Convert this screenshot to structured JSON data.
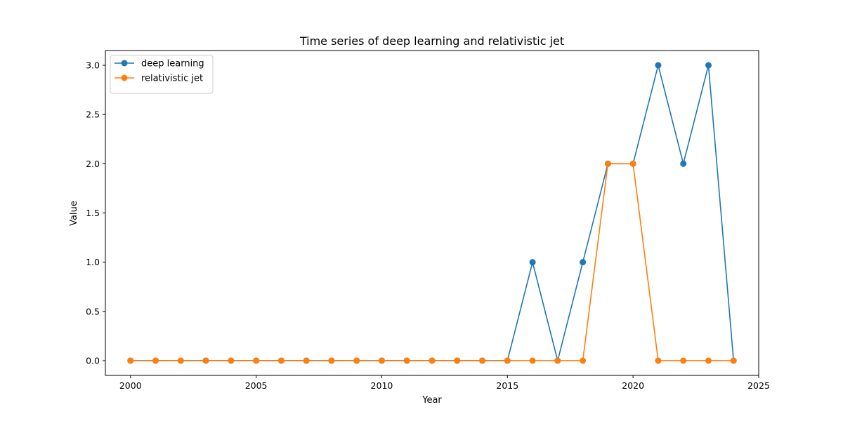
{
  "chart_data": {
    "type": "line",
    "title": "Time series of deep learning and relativistic jet",
    "xlabel": "Year",
    "ylabel": "Value",
    "xlim": [
      1999,
      2025
    ],
    "ylim": [
      -0.15,
      3.15
    ],
    "xticks": [
      2000,
      2005,
      2010,
      2015,
      2020,
      2025
    ],
    "yticks": [
      0.0,
      0.5,
      1.0,
      1.5,
      2.0,
      2.5,
      3.0
    ],
    "ytick_labels": [
      "0.0",
      "0.5",
      "1.0",
      "1.5",
      "2.0",
      "2.5",
      "3.0"
    ],
    "legend_position": "top-left",
    "grid": false,
    "x": [
      2000,
      2001,
      2002,
      2003,
      2004,
      2005,
      2006,
      2007,
      2008,
      2009,
      2010,
      2011,
      2012,
      2013,
      2014,
      2015,
      2016,
      2017,
      2018,
      2019,
      2020,
      2021,
      2022,
      2023,
      2024
    ],
    "series": [
      {
        "name": "deep learning",
        "color": "#1f77b4",
        "values": [
          0,
          0,
          0,
          0,
          0,
          0,
          0,
          0,
          0,
          0,
          0,
          0,
          0,
          0,
          0,
          0,
          1,
          0,
          1,
          2,
          2,
          3,
          2,
          3,
          0
        ]
      },
      {
        "name": "relativistic jet",
        "color": "#ff7f0e",
        "values": [
          0,
          0,
          0,
          0,
          0,
          0,
          0,
          0,
          0,
          0,
          0,
          0,
          0,
          0,
          0,
          0,
          0,
          0,
          0,
          2,
          2,
          0,
          0,
          0,
          0
        ]
      }
    ]
  }
}
